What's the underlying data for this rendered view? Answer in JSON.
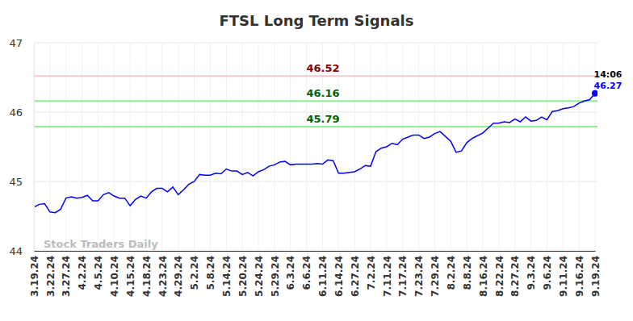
{
  "chart_data": {
    "type": "line",
    "title": "FTSL Long Term Signals",
    "watermark": "Stock Traders Daily",
    "color": "#0000ff",
    "grid": true,
    "categories": [
      "3.19.24",
      null,
      null,
      "3.22.24",
      null,
      null,
      "3.27.24",
      null,
      null,
      "4.2.24",
      null,
      null,
      "4.5.24",
      null,
      null,
      "4.10.24",
      null,
      null,
      "4.15.24",
      null,
      null,
      "4.18.24",
      null,
      null,
      "4.23.24",
      null,
      null,
      "4.29.24",
      null,
      null,
      "5.2.24",
      null,
      null,
      "5.8.24",
      null,
      null,
      "5.14.24",
      null,
      null,
      "5.20.24",
      null,
      null,
      "5.24.24",
      null,
      null,
      "5.29.24",
      null,
      null,
      "6.3.24",
      null,
      null,
      "6.6.24",
      null,
      null,
      "6.11.24",
      null,
      null,
      "6.14.24",
      null,
      null,
      "6.27.24",
      null,
      null,
      "7.2.24",
      null,
      null,
      "7.11.24",
      null,
      null,
      "7.17.24",
      null,
      null,
      "7.23.24",
      null,
      null,
      "7.29.24",
      null,
      null,
      "8.2.24",
      null,
      null,
      "8.8.24",
      null,
      null,
      "8.16.24",
      null,
      null,
      "8.22.24",
      null,
      null,
      "8.27.24",
      null,
      null,
      "9.3.24",
      null,
      null,
      "9.6.24",
      null,
      null,
      "9.11.24",
      null,
      null,
      "9.16.24",
      null,
      null,
      "9.19.24"
    ],
    "values": [
      44.63,
      44.67,
      44.68,
      44.56,
      44.55,
      44.6,
      44.76,
      44.78,
      44.76,
      44.77,
      44.8,
      44.72,
      44.72,
      44.81,
      44.84,
      44.79,
      44.76,
      44.76,
      44.65,
      44.74,
      44.79,
      44.76,
      44.85,
      44.9,
      44.9,
      44.85,
      44.92,
      44.81,
      44.88,
      44.96,
      45.0,
      45.1,
      45.09,
      45.09,
      45.12,
      45.11,
      45.18,
      45.15,
      45.15,
      45.1,
      45.13,
      45.08,
      45.14,
      45.17,
      45.22,
      45.24,
      45.28,
      45.29,
      45.24,
      45.25,
      45.25,
      45.25,
      45.25,
      45.26,
      45.25,
      45.31,
      45.3,
      45.12,
      45.12,
      45.13,
      45.14,
      45.18,
      45.23,
      45.22,
      45.43,
      45.48,
      45.5,
      45.55,
      45.53,
      45.61,
      45.64,
      45.67,
      45.67,
      45.62,
      45.64,
      45.69,
      45.72,
      45.65,
      45.58,
      45.42,
      45.44,
      45.56,
      45.62,
      45.66,
      45.7,
      45.77,
      45.84,
      45.84,
      45.86,
      45.85,
      45.9,
      45.86,
      45.93,
      45.87,
      45.88,
      45.93,
      45.89,
      46.01,
      46.02,
      46.05,
      46.06,
      46.08,
      46.13,
      46.16,
      46.18,
      46.27
    ],
    "ylim": [
      44,
      47
    ],
    "yticks": [
      44,
      45,
      46,
      47
    ],
    "reference_lines": [
      {
        "value": 46.52,
        "label": "46.52",
        "color": "#ffc8c8",
        "label_color": "#8b0000"
      },
      {
        "value": 46.16,
        "label": "46.16",
        "color": "#90ee90",
        "label_color": "#006400"
      },
      {
        "value": 45.79,
        "label": "45.79",
        "color": "#90ee90",
        "label_color": "#006400"
      }
    ],
    "last_label": {
      "time": "14:06",
      "value": 46.27
    }
  }
}
